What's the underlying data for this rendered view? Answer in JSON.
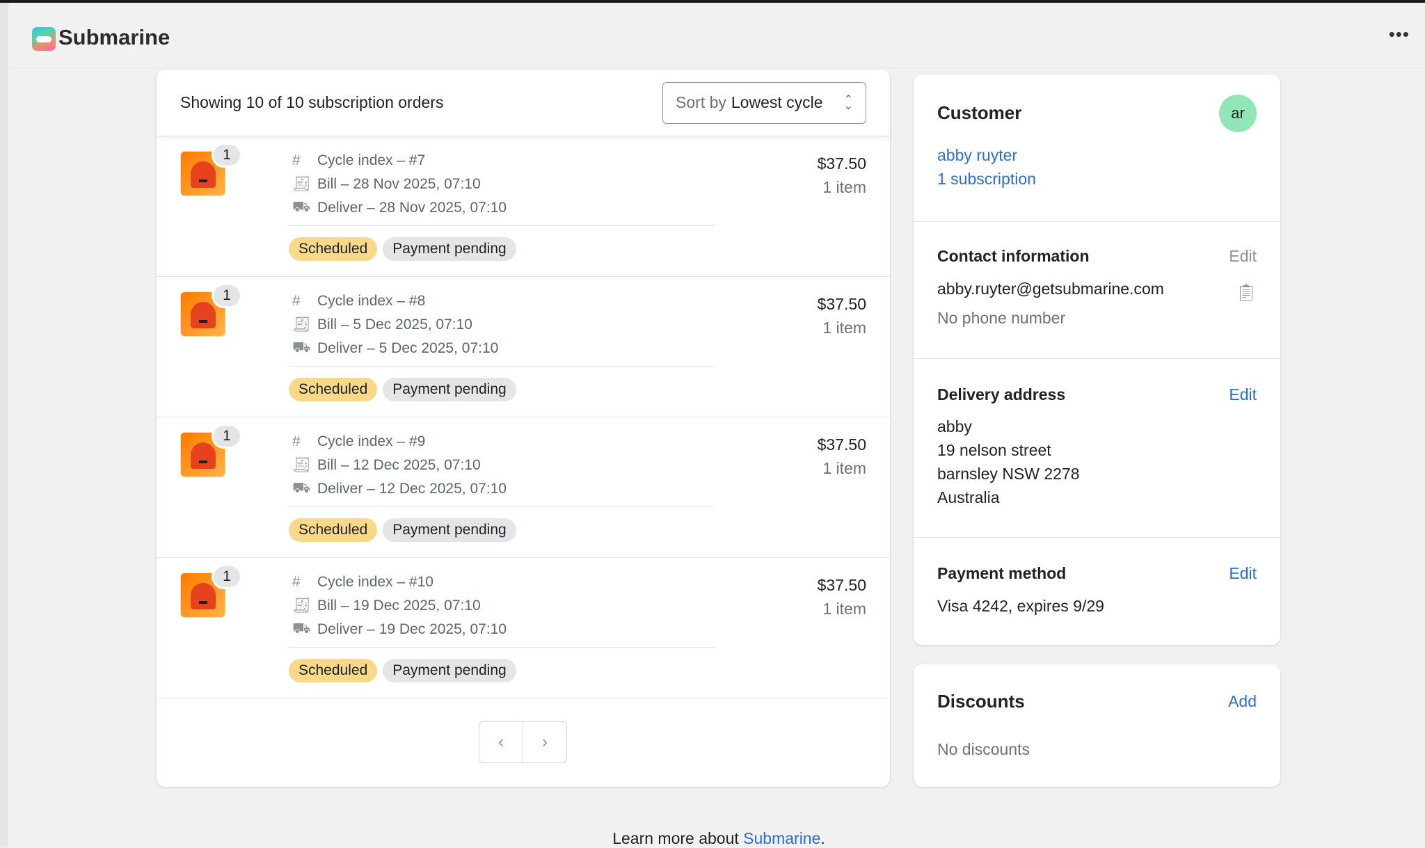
{
  "app": {
    "title": "Submarine",
    "more_icon": "ellipsis-icon"
  },
  "orders": {
    "count_text": "Showing 10 of 10 subscription orders",
    "sort": {
      "prefix": "Sort by",
      "value": "Lowest cycle"
    },
    "items": [
      {
        "qty": "1",
        "cycle": "Cycle index – #7",
        "bill": "Bill – 28 Nov 2025, 07:10",
        "deliver": "Deliver – 28 Nov 2025, 07:10",
        "status": "Scheduled",
        "payment": "Payment pending",
        "price": "$37.50",
        "items": "1 item"
      },
      {
        "qty": "1",
        "cycle": "Cycle index – #8",
        "bill": "Bill – 5 Dec 2025, 07:10",
        "deliver": "Deliver – 5 Dec 2025, 07:10",
        "status": "Scheduled",
        "payment": "Payment pending",
        "price": "$37.50",
        "items": "1 item"
      },
      {
        "qty": "1",
        "cycle": "Cycle index – #9",
        "bill": "Bill – 12 Dec 2025, 07:10",
        "deliver": "Deliver – 12 Dec 2025, 07:10",
        "status": "Scheduled",
        "payment": "Payment pending",
        "price": "$37.50",
        "items": "1 item"
      },
      {
        "qty": "1",
        "cycle": "Cycle index – #10",
        "bill": "Bill – 19 Dec 2025, 07:10",
        "deliver": "Deliver – 19 Dec 2025, 07:10",
        "status": "Scheduled",
        "payment": "Payment pending",
        "price": "$37.50",
        "items": "1 item"
      }
    ],
    "pager": {
      "prev": "‹",
      "next": "›"
    }
  },
  "customer": {
    "title": "Customer",
    "initials": "ar",
    "name": "abby ruyter",
    "subscriptions": "1 subscription",
    "contact": {
      "title": "Contact information",
      "edit": "Edit",
      "email": "abby.ruyter@getsubmarine.com",
      "phone": "No phone number"
    },
    "delivery": {
      "title": "Delivery address",
      "edit": "Edit",
      "lines": [
        "abby",
        "19 nelson street",
        "barnsley NSW 2278",
        "Australia"
      ]
    },
    "payment": {
      "title": "Payment method",
      "edit": "Edit",
      "value": "Visa 4242, expires 9/29"
    }
  },
  "discounts": {
    "title": "Discounts",
    "add": "Add",
    "empty": "No discounts"
  },
  "footer": {
    "text": "Learn more about ",
    "link": "Submarine",
    "end": "."
  },
  "colors": {
    "accent": "#2c6ecb",
    "scheduled": "#f8d98a",
    "pending": "#e4e5e7",
    "avatar": "#92e6b5"
  }
}
